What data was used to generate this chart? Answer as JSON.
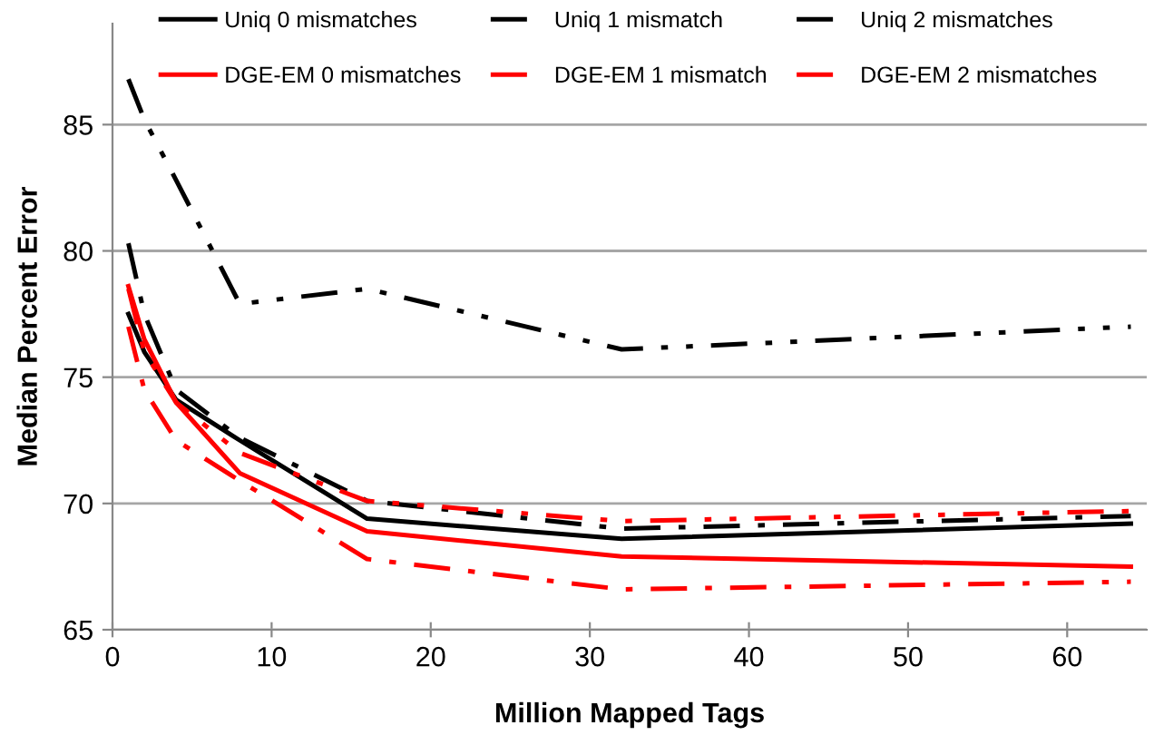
{
  "chart_data": {
    "type": "line",
    "xlabel": "Million Mapped Tags",
    "ylabel": "Median Percent Error",
    "x": [
      1,
      2,
      4,
      8,
      16,
      32,
      64
    ],
    "series": [
      {
        "name": "Uniq 0 mismatches",
        "color": "#000000",
        "line_style": "solid",
        "values": [
          77.5,
          76.0,
          74.1,
          72.5,
          69.4,
          68.6,
          69.2
        ]
      },
      {
        "name": "Uniq 1 mismatch",
        "color": "#000000",
        "line_style": "dashdot",
        "values": [
          80.3,
          77.5,
          74.5,
          72.6,
          70.1,
          69.0,
          69.5
        ]
      },
      {
        "name": "Uniq 2 mismatches",
        "color": "#000000",
        "line_style": "dashdotdot",
        "values": [
          86.8,
          85.2,
          82.8,
          77.9,
          78.5,
          76.1,
          77.0
        ]
      },
      {
        "name": "DGE-EM 0 mismatches",
        "color": "#ff0000",
        "line_style": "solid",
        "values": [
          78.6,
          76.5,
          74.0,
          71.2,
          68.9,
          67.9,
          67.5
        ]
      },
      {
        "name": "DGE-EM 1 mismatch",
        "color": "#ff0000",
        "line_style": "dashdot",
        "values": [
          77.0,
          74.5,
          72.5,
          70.9,
          67.8,
          66.6,
          66.9
        ]
      },
      {
        "name": "DGE-EM 2 mismatches",
        "color": "#ff0000",
        "line_style": "dashdotdot",
        "values": [
          78.5,
          76.0,
          74.0,
          72.0,
          70.1,
          69.3,
          69.7
        ]
      }
    ],
    "xlim": [
      0,
      65
    ],
    "ylim": [
      65,
      89
    ],
    "xticks": [
      0,
      10,
      20,
      30,
      40,
      50,
      60
    ],
    "yticks": [
      65,
      70,
      75,
      80,
      85
    ],
    "grid": "y",
    "legend": "top",
    "marker": "none"
  }
}
